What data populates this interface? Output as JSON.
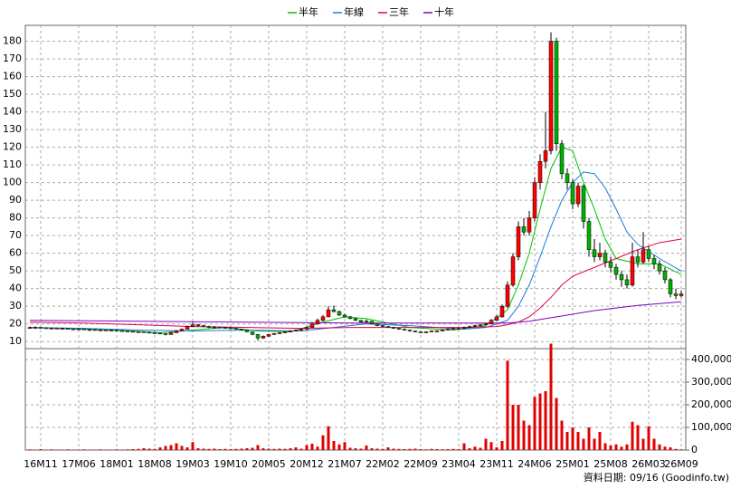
{
  "chart_data": {
    "type": "candlestick",
    "footer": "資料日期: 09/16  (Goodinfo.tw)",
    "grid": true,
    "up_color": "#ff0000",
    "down_color": "#00b000",
    "volume_color": "#e00000",
    "categories": [
      null,
      null,
      "16M11",
      null,
      null,
      null,
      null,
      null,
      null,
      "17M06",
      null,
      null,
      null,
      null,
      null,
      null,
      "18M01",
      null,
      null,
      null,
      null,
      null,
      null,
      "18M08",
      null,
      null,
      null,
      null,
      null,
      null,
      "19M03",
      null,
      null,
      null,
      null,
      null,
      null,
      "19M10",
      null,
      null,
      null,
      null,
      null,
      null,
      "20M05",
      null,
      null,
      null,
      null,
      null,
      null,
      "20M12",
      null,
      null,
      null,
      null,
      null,
      null,
      "21M07",
      null,
      null,
      null,
      null,
      null,
      null,
      "22M02",
      null,
      null,
      null,
      null,
      null,
      null,
      "22M09",
      null,
      null,
      null,
      null,
      null,
      null,
      "23M04",
      null,
      null,
      null,
      null,
      null,
      null,
      "23M11",
      null,
      null,
      null,
      null,
      null,
      null,
      "24M06",
      null,
      null,
      null,
      null,
      null,
      null,
      "25M01",
      null,
      null,
      null,
      null,
      null,
      null,
      "25M08",
      null,
      null,
      null,
      null,
      null,
      null,
      "26M03",
      null,
      null,
      null,
      null,
      null,
      "26M09"
    ],
    "ohlc": [
      [
        17.5,
        18.5,
        17.2,
        18
      ],
      [
        18,
        18.6,
        17.6,
        18
      ],
      [
        18,
        18.3,
        17.4,
        17.8
      ],
      [
        17.8,
        18,
        17.2,
        17.5
      ],
      [
        17.5,
        18,
        17.2,
        17.6
      ],
      [
        17.6,
        17.9,
        17.1,
        17.4
      ],
      [
        17.4,
        17.8,
        17.1,
        17.5
      ],
      [
        17.5,
        17.7,
        16.9,
        17.2
      ],
      [
        17.2,
        17.4,
        16.7,
        17
      ],
      [
        17,
        17.5,
        16.8,
        17.2
      ],
      [
        17.2,
        17.3,
        16.5,
        16.8
      ],
      [
        16.8,
        17.1,
        16.5,
        16.8
      ],
      [
        16.8,
        17,
        16.2,
        16.5
      ],
      [
        16.5,
        16.9,
        16.3,
        16.6
      ],
      [
        16.6,
        16.7,
        16,
        16.3
      ],
      [
        16.3,
        16.8,
        16.1,
        16.5
      ],
      [
        16.5,
        16.6,
        15.9,
        16.2
      ],
      [
        16.2,
        16.4,
        15.7,
        16
      ],
      [
        16,
        16.2,
        15.5,
        15.8
      ],
      [
        15.8,
        16,
        15.2,
        15.5
      ],
      [
        15.5,
        15.9,
        15.2,
        15.6
      ],
      [
        15.6,
        15.8,
        15,
        15.3
      ],
      [
        15.3,
        15.5,
        14.7,
        15
      ],
      [
        15,
        15.3,
        14.5,
        14.8
      ],
      [
        14.8,
        15,
        14.2,
        14.5
      ],
      [
        14.5,
        14.8,
        13.5,
        14
      ],
      [
        14,
        15.4,
        13.8,
        15
      ],
      [
        15,
        16.5,
        14.8,
        16
      ],
      [
        16,
        17.5,
        15.8,
        17
      ],
      [
        17,
        19,
        16.8,
        18.5
      ],
      [
        18.5,
        21,
        18.2,
        19.5
      ],
      [
        19.5,
        20,
        18.5,
        19
      ],
      [
        19,
        19.6,
        18.2,
        18.5
      ],
      [
        18.5,
        19,
        17.6,
        18
      ],
      [
        18,
        18.8,
        17.8,
        18.2
      ],
      [
        18.2,
        18.5,
        17.6,
        18
      ],
      [
        18,
        18.3,
        17.4,
        17.8
      ],
      [
        17.8,
        18,
        17.1,
        17.5
      ],
      [
        17.5,
        17.7,
        16.7,
        17
      ],
      [
        17,
        17.2,
        16.2,
        16.5
      ],
      [
        16.5,
        16.8,
        15.2,
        15.5
      ],
      [
        15.5,
        15.7,
        13.6,
        14
      ],
      [
        14,
        14.3,
        10.5,
        12
      ],
      [
        12,
        13.5,
        11.6,
        13
      ],
      [
        13,
        14.4,
        12.8,
        14
      ],
      [
        14,
        14.8,
        13.8,
        14.5
      ],
      [
        14.5,
        15.3,
        14.3,
        15
      ],
      [
        15,
        15.8,
        14.8,
        15.5
      ],
      [
        15.5,
        16.3,
        15.3,
        16
      ],
      [
        16,
        16.8,
        15.8,
        16.5
      ],
      [
        16.5,
        17.4,
        16.2,
        17
      ],
      [
        17,
        18.5,
        16.8,
        18
      ],
      [
        18,
        20.8,
        17.8,
        20
      ],
      [
        20,
        23,
        19.6,
        22
      ],
      [
        22,
        25,
        21.5,
        24
      ],
      [
        24,
        30,
        23.8,
        28
      ],
      [
        28,
        30.5,
        26.5,
        27
      ],
      [
        27,
        27.5,
        24.5,
        25
      ],
      [
        25,
        25.8,
        23.5,
        24
      ],
      [
        24,
        24.5,
        22.6,
        23
      ],
      [
        23,
        23.4,
        21.6,
        22
      ],
      [
        22,
        22.3,
        20.6,
        21
      ],
      [
        21,
        22.5,
        20.8,
        21.5
      ],
      [
        21.5,
        21.8,
        19.6,
        20
      ],
      [
        20,
        20.3,
        18.7,
        19
      ],
      [
        19,
        19.4,
        18.2,
        18.5
      ],
      [
        18.5,
        18.8,
        17.7,
        18
      ],
      [
        18,
        18.3,
        17.2,
        17.5
      ],
      [
        17.5,
        17.8,
        16.7,
        17
      ],
      [
        17,
        17.3,
        16.2,
        16.5
      ],
      [
        16.5,
        16.8,
        15.7,
        16
      ],
      [
        16,
        16.3,
        15.2,
        15.5
      ],
      [
        15.5,
        15.7,
        14.7,
        15
      ],
      [
        15,
        15.8,
        14.8,
        15.5
      ],
      [
        15.5,
        16.3,
        15.3,
        16
      ],
      [
        16,
        16.5,
        15.6,
        16
      ],
      [
        16,
        16.9,
        15.8,
        16.5
      ],
      [
        16.5,
        17.4,
        16.3,
        17
      ],
      [
        17,
        17.9,
        16.8,
        17.5
      ],
      [
        17.5,
        18,
        17.1,
        17.5
      ],
      [
        17.5,
        18.5,
        17.3,
        18
      ],
      [
        18,
        19,
        17.8,
        18.5
      ],
      [
        18.5,
        19.6,
        18.2,
        19
      ],
      [
        19,
        20,
        18.6,
        19.5
      ],
      [
        19.5,
        20.6,
        19.2,
        20
      ],
      [
        20,
        22.8,
        19.8,
        22
      ],
      [
        22,
        25,
        21.6,
        24
      ],
      [
        24,
        31,
        23.5,
        30
      ],
      [
        30,
        44,
        29,
        42
      ],
      [
        42,
        60,
        41,
        58
      ],
      [
        58,
        78,
        56,
        75
      ],
      [
        75,
        80,
        70,
        72
      ],
      [
        72,
        84,
        70,
        80
      ],
      [
        80,
        103,
        78,
        100
      ],
      [
        100,
        116,
        96,
        112
      ],
      [
        112,
        140,
        108,
        118
      ],
      [
        118,
        185,
        116,
        180
      ],
      [
        180,
        182,
        118,
        122
      ],
      [
        122,
        124,
        102,
        105
      ],
      [
        105,
        108,
        96,
        100
      ],
      [
        100,
        102,
        85,
        88
      ],
      [
        88,
        100,
        86,
        98
      ],
      [
        98,
        99,
        74,
        78
      ],
      [
        78,
        80,
        58,
        62
      ],
      [
        62,
        68,
        55,
        58
      ],
      [
        58,
        66,
        56,
        60
      ],
      [
        60,
        62,
        52,
        55
      ],
      [
        55,
        58,
        49,
        52
      ],
      [
        52,
        54,
        45,
        48
      ],
      [
        48,
        50,
        41,
        45
      ],
      [
        45,
        48,
        40,
        42
      ],
      [
        42,
        66,
        41,
        58
      ],
      [
        58,
        62,
        52,
        55
      ],
      [
        55,
        72,
        54,
        62
      ],
      [
        62,
        64,
        55,
        57
      ],
      [
        57,
        59,
        51,
        54
      ],
      [
        54,
        56,
        48,
        50
      ],
      [
        50,
        52,
        43,
        45
      ],
      [
        45,
        46,
        35,
        37
      ],
      [
        37,
        40,
        34,
        36
      ],
      [
        36,
        39,
        35,
        37
      ]
    ],
    "volume": [
      3000,
      2000,
      4000,
      2000,
      3000,
      2000,
      2000,
      3000,
      2000,
      2000,
      3000,
      2000,
      2000,
      3000,
      2000,
      2000,
      3000,
      2000,
      3000,
      4000,
      5000,
      8000,
      6000,
      5000,
      12000,
      18000,
      22000,
      30000,
      18000,
      12000,
      35000,
      8000,
      6000,
      5000,
      6000,
      4000,
      5000,
      4000,
      5000,
      6000,
      8000,
      10000,
      22000,
      8000,
      6000,
      5000,
      6000,
      5000,
      8000,
      12000,
      6000,
      22000,
      28000,
      15000,
      65000,
      105000,
      40000,
      25000,
      35000,
      10000,
      8000,
      6000,
      20000,
      8000,
      6000,
      5000,
      12000,
      6000,
      5000,
      4000,
      5000,
      6000,
      4000,
      3000,
      5000,
      4000,
      3000,
      4000,
      5000,
      4000,
      30000,
      8000,
      15000,
      10000,
      50000,
      35000,
      12000,
      40000,
      395000,
      200000,
      200000,
      130000,
      110000,
      235000,
      250000,
      260000,
      470000,
      230000,
      130000,
      80000,
      100000,
      80000,
      50000,
      100000,
      50000,
      80000,
      30000,
      20000,
      25000,
      15000,
      25000,
      125000,
      110000,
      50000,
      105000,
      50000,
      25000,
      15000,
      12000,
      5000,
      3000
    ],
    "series": [
      {
        "name": "半年",
        "color": "#00c000",
        "x": [
          0,
          8,
          16,
          24,
          30,
          36,
          42,
          48,
          54,
          58,
          62,
          70,
          78,
          84,
          88,
          90,
          92,
          94,
          96,
          98,
          100,
          102,
          104,
          106,
          108,
          112,
          116,
          120
        ],
        "values": [
          18,
          17.3,
          16.5,
          15,
          16.5,
          18,
          16,
          15.5,
          21,
          24,
          23,
          18,
          16.5,
          19,
          28,
          42,
          60,
          85,
          108,
          120,
          118,
          100,
          85,
          68,
          57,
          54,
          54,
          48
        ]
      },
      {
        "name": "年線",
        "color": "#1e78e0",
        "x": [
          0,
          10,
          20,
          30,
          40,
          50,
          56,
          62,
          70,
          80,
          84,
          88,
          90,
          92,
          94,
          96,
          98,
          100,
          102,
          104,
          106,
          108,
          110,
          112,
          116,
          120
        ],
        "values": [
          18,
          17.5,
          16.5,
          16,
          16.5,
          16,
          18,
          20,
          19,
          17,
          18,
          22,
          30,
          42,
          58,
          75,
          90,
          100,
          106,
          105,
          97,
          85,
          72,
          65,
          57,
          50
        ]
      },
      {
        "name": "三年",
        "color": "#e0004a",
        "x": [
          0,
          10,
          20,
          30,
          40,
          50,
          60,
          70,
          80,
          86,
          88,
          90,
          92,
          94,
          96,
          98,
          100,
          104,
          108,
          112,
          116,
          120
        ],
        "values": [
          21,
          20.5,
          19.5,
          18.5,
          18,
          17.5,
          18,
          18,
          18,
          18.5,
          19.5,
          21,
          24,
          29,
          35,
          42,
          47,
          52,
          57,
          62,
          66,
          68
        ]
      },
      {
        "name": "十年",
        "color": "#8000c0",
        "x": [
          0,
          20,
          40,
          60,
          80,
          88,
          92,
          96,
          100,
          104,
          108,
          112,
          116,
          120
        ],
        "values": [
          22,
          21.5,
          21,
          20.5,
          20.5,
          20.5,
          21.5,
          23.5,
          25.5,
          27.5,
          29,
          30.5,
          31.5,
          32.5
        ]
      }
    ],
    "ylim": [
      6,
      189
    ],
    "yticks": [
      10,
      20,
      30,
      40,
      50,
      60,
      70,
      80,
      90,
      100,
      110,
      120,
      130,
      140,
      150,
      160,
      170,
      180
    ],
    "y2lim": [
      0,
      448000
    ],
    "y2ticks": [
      0,
      {
        "value": 100000,
        "label": "100,000"
      },
      {
        "value": 200000,
        "label": "200,000"
      },
      {
        "value": 300000,
        "label": "300,000"
      },
      {
        "value": 400000,
        "label": "400,000"
      }
    ]
  }
}
